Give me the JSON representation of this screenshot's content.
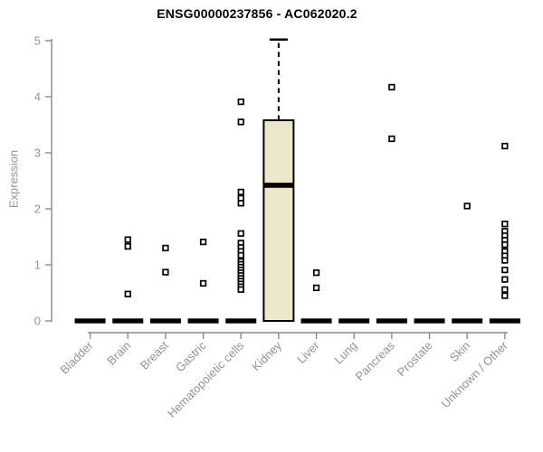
{
  "chart_data": {
    "type": "boxplot",
    "title": "ENSG00000237856 - AC062020.2",
    "ylabel": "Expression",
    "xlabel": "",
    "ylim": [
      0,
      5
    ],
    "yticks": [
      0,
      1,
      2,
      3,
      4,
      5
    ],
    "grid": false,
    "legend": "none",
    "box_fill": "#ede7cc",
    "box_stroke": "#000000",
    "axis_color": "#8a8a8a",
    "tick_text_color": "#949494",
    "title_color": "#000000",
    "categories": [
      "Bladder",
      "Brain",
      "Breast",
      "Gastric",
      "Hematopoietic cells",
      "Kidney",
      "Liver",
      "Lung",
      "Pancreas",
      "Prostate",
      "Skin",
      "Unknown / Other"
    ],
    "boxes": [
      {
        "category": "Bladder",
        "low": 0,
        "q1": 0,
        "median": 0,
        "q3": 0,
        "high": 0,
        "outliers": []
      },
      {
        "category": "Brain",
        "low": 0,
        "q1": 0,
        "median": 0,
        "q3": 0,
        "high": 0,
        "outliers": [
          1.45,
          1.33,
          0.48
        ]
      },
      {
        "category": "Breast",
        "low": 0,
        "q1": 0,
        "median": 0,
        "q3": 0,
        "high": 0,
        "outliers": [
          1.3,
          0.87
        ]
      },
      {
        "category": "Gastric",
        "low": 0,
        "q1": 0,
        "median": 0,
        "q3": 0,
        "high": 0,
        "outliers": [
          1.41,
          0.67
        ]
      },
      {
        "category": "Hematopoietic cells",
        "low": 0,
        "q1": 0,
        "median": 0,
        "q3": 0,
        "high": 0,
        "outliers": [
          3.91,
          3.55,
          2.3,
          2.19,
          2.1,
          1.56,
          1.39,
          1.31,
          1.24,
          1.17,
          1.06,
          1.01,
          0.96,
          0.91,
          0.86,
          0.81,
          0.76,
          0.71,
          0.66,
          0.61,
          0.56
        ]
      },
      {
        "category": "Kidney",
        "low": 0,
        "q1": 0,
        "median": 2.42,
        "q3": 3.58,
        "high": 5.02,
        "outliers": []
      },
      {
        "category": "Liver",
        "low": 0,
        "q1": 0,
        "median": 0,
        "q3": 0,
        "high": 0,
        "outliers": [
          0.86,
          0.59
        ]
      },
      {
        "category": "Lung",
        "low": 0,
        "q1": 0,
        "median": 0,
        "q3": 0,
        "high": 0,
        "outliers": []
      },
      {
        "category": "Pancreas",
        "low": 0,
        "q1": 0,
        "median": 0,
        "q3": 0,
        "high": 0,
        "outliers": [
          4.17,
          3.25
        ]
      },
      {
        "category": "Prostate",
        "low": 0,
        "q1": 0,
        "median": 0,
        "q3": 0,
        "high": 0,
        "outliers": []
      },
      {
        "category": "Skin",
        "low": 0,
        "q1": 0,
        "median": 0,
        "q3": 0,
        "high": 0,
        "outliers": [
          2.05
        ]
      },
      {
        "category": "Unknown / Other",
        "low": 0,
        "q1": 0,
        "median": 0,
        "q3": 0,
        "high": 0,
        "outliers": [
          3.12,
          1.73,
          1.6,
          1.52,
          1.44,
          1.36,
          1.24,
          1.16,
          1.08,
          0.91,
          0.74,
          0.56,
          0.45
        ]
      }
    ]
  }
}
